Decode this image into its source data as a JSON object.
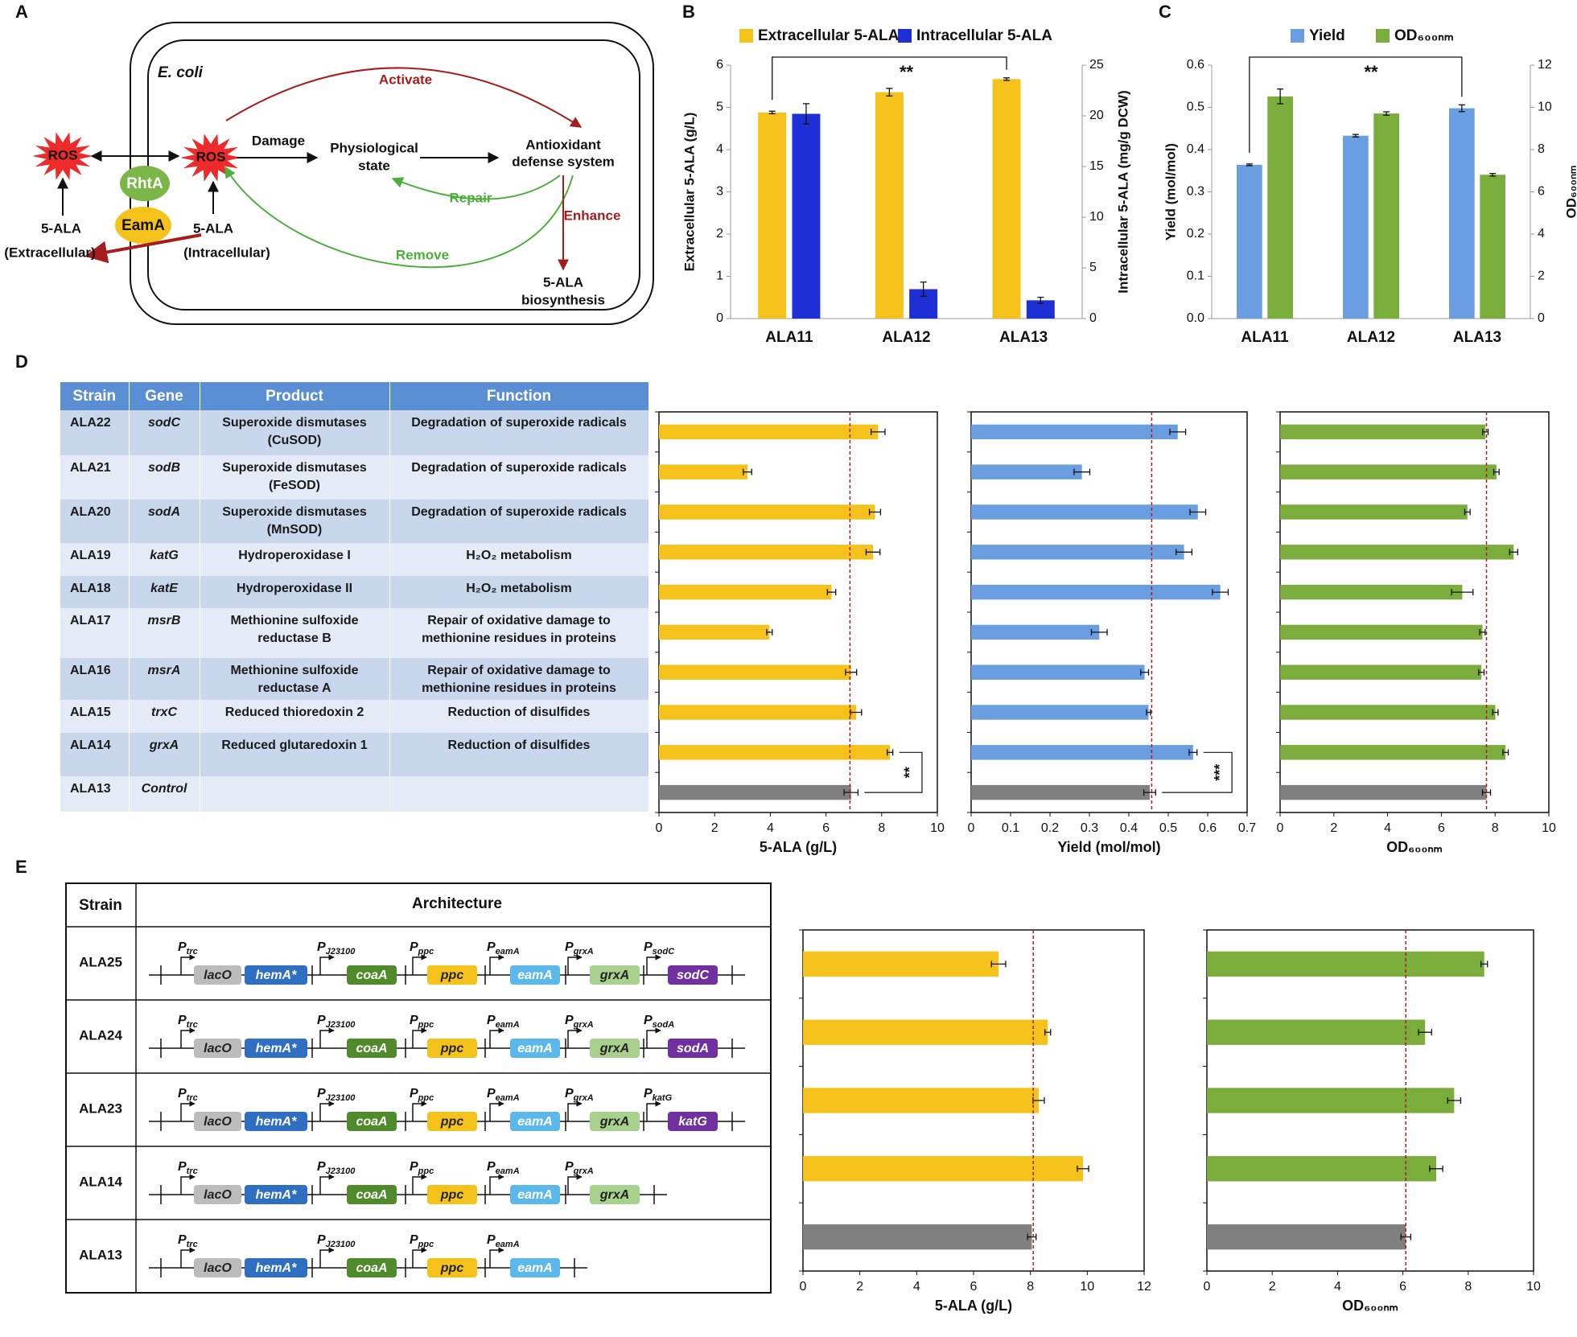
{
  "panel_labels": [
    "A",
    "B",
    "C",
    "D",
    "E"
  ],
  "diagram": {
    "organism": "E. coli",
    "ros": "ROS",
    "activate": "Activate",
    "damage": "Damage",
    "physiological_state": [
      "Physiological",
      "state"
    ],
    "antioxidant_system": [
      "Antioxidant",
      "defense system"
    ],
    "repair": "Repair",
    "remove": "Remove",
    "enhance": "Enhance",
    "biosynthesis": [
      "5-ALA",
      "biosynthesis"
    ],
    "rhta": "RhtA",
    "eama": "EamA",
    "extracellular": [
      "5-ALA",
      "(Extracellular)"
    ],
    "intracellular": [
      "5-ALA",
      "(Intracellular)"
    ]
  },
  "chart_data": [
    {
      "type": "bar",
      "categories": [
        "ALA11",
        "ALA12",
        "ALA13"
      ],
      "series": [
        {
          "name": "Extracellular 5-ALA",
          "color": "#f5c21b",
          "values": [
            4.88,
            5.36,
            5.67
          ],
          "errors": [
            0.03,
            0.09,
            0.03
          ]
        },
        {
          "name": "Intracellular 5-ALA",
          "color": "#1f2fd6",
          "axis": "y2",
          "values": [
            20.2,
            2.9,
            1.8
          ],
          "errors": [
            1.0,
            0.7,
            0.3
          ]
        }
      ],
      "ylabel": "Extracellular 5-ALA (g/L)",
      "y2label": "Intracellular 5-ALA (mg/g DCW)",
      "ylim": [
        0,
        6
      ],
      "yticks": [
        0,
        1,
        2,
        3,
        4,
        5,
        6
      ],
      "y2lim": [
        0,
        25
      ],
      "y2ticks": [
        0,
        5,
        10,
        15,
        20,
        25
      ],
      "annotation": "**"
    },
    {
      "type": "bar",
      "categories": [
        "ALA11",
        "ALA12",
        "ALA13"
      ],
      "series": [
        {
          "name": "Yield",
          "color": "#6a9ee0",
          "values": [
            0.364,
            0.433,
            0.498
          ],
          "errors": [
            0.002,
            0.003,
            0.008
          ]
        },
        {
          "name": "OD₆₀₀ₙₘ",
          "color": "#7aad3c",
          "axis": "y2",
          "values": [
            10.52,
            9.71,
            6.81
          ],
          "errors": [
            0.35,
            0.08,
            0.06
          ]
        }
      ],
      "ylabel": "Yield (mol/mol)",
      "y2label": "OD₆₀₀ₙₘ",
      "ylim": [
        0,
        0.6
      ],
      "yticks": [
        {
          "value": 0,
          "label": "0.0"
        },
        0.1,
        0.2,
        0.3,
        0.4,
        0.5,
        0.6
      ],
      "y2lim": [
        0,
        12
      ],
      "y2ticks": [
        0,
        2,
        4,
        6,
        8,
        10,
        12
      ],
      "annotation": "**"
    },
    {
      "type": "barh",
      "values": [
        7.87,
        3.18,
        7.76,
        7.69,
        6.2,
        3.97,
        6.9,
        7.08,
        8.3,
        6.9
      ],
      "errors": [
        0.25,
        0.15,
        0.2,
        0.25,
        0.15,
        0.1,
        0.2,
        0.2,
        0.1,
        0.25
      ],
      "colors": [
        "#f5c21b",
        "#f5c21b",
        "#f5c21b",
        "#f5c21b",
        "#f5c21b",
        "#f5c21b",
        "#f5c21b",
        "#f5c21b",
        "#f5c21b",
        "#808080"
      ],
      "reference_line": 6.86,
      "reference_color": "#b01c1c",
      "xlabel": "5-ALA (g/L)",
      "xlim": [
        0,
        10
      ],
      "xticks": [
        0,
        2,
        4,
        6,
        8,
        10
      ],
      "annotation": "**"
    },
    {
      "type": "barh",
      "values": [
        0.524,
        0.281,
        0.575,
        0.54,
        0.632,
        0.325,
        0.44,
        0.45,
        0.563,
        0.453
      ],
      "errors": [
        0.02,
        0.02,
        0.02,
        0.02,
        0.02,
        0.02,
        0.01,
        0.005,
        0.01,
        0.015
      ],
      "colors": [
        "#6a9ee0",
        "#6a9ee0",
        "#6a9ee0",
        "#6a9ee0",
        "#6a9ee0",
        "#6a9ee0",
        "#6a9ee0",
        "#6a9ee0",
        "#6a9ee0",
        "#808080"
      ],
      "reference_line": 0.458,
      "reference_color": "#b01c1c",
      "xlabel": "Yield (mol/mol)",
      "xlim": [
        0,
        0.7
      ],
      "xticks": [
        0,
        0.1,
        0.2,
        0.3,
        0.4,
        0.5,
        0.6,
        0.7
      ],
      "annotation": "***"
    },
    {
      "type": "barh",
      "values": [
        7.64,
        8.05,
        6.97,
        8.69,
        6.78,
        7.53,
        7.49,
        8.01,
        8.39,
        7.68
      ],
      "errors": [
        0.1,
        0.1,
        0.1,
        0.15,
        0.4,
        0.1,
        0.1,
        0.1,
        0.1,
        0.15
      ],
      "colors": [
        "#7aad3c",
        "#7aad3c",
        "#7aad3c",
        "#7aad3c",
        "#7aad3c",
        "#7aad3c",
        "#7aad3c",
        "#7aad3c",
        "#7aad3c",
        "#808080"
      ],
      "reference_line": 7.68,
      "reference_color": "#b01c1c",
      "xlabel": "OD₆₀₀ₙₘ",
      "xlim": [
        0,
        10
      ],
      "xticks": [
        0,
        2,
        4,
        6,
        8,
        10
      ]
    },
    {
      "type": "barh",
      "values": [
        6.88,
        8.61,
        8.29,
        9.85,
        8.05
      ],
      "errors": [
        0.25,
        0.1,
        0.2,
        0.2,
        0.15
      ],
      "colors": [
        "#f5c21b",
        "#f5c21b",
        "#f5c21b",
        "#f5c21b",
        "#808080"
      ],
      "reference_line": 8.1,
      "reference_color": "#b01c1c",
      "xlabel": "5-ALA (g/L)",
      "xlim": [
        0,
        12
      ],
      "xticks": [
        0,
        2,
        4,
        6,
        8,
        10,
        12
      ]
    },
    {
      "type": "barh",
      "values": [
        8.49,
        6.68,
        7.57,
        7.02,
        6.09
      ],
      "errors": [
        0.1,
        0.2,
        0.2,
        0.2,
        0.15
      ],
      "colors": [
        "#7aad3c",
        "#7aad3c",
        "#7aad3c",
        "#7aad3c",
        "#808080"
      ],
      "reference_line": 6.09,
      "reference_color": "#b01c1c",
      "xlabel": "OD₆₀₀ₙₘ",
      "xlim": [
        0,
        10
      ],
      "xticks": [
        0,
        2,
        4,
        6,
        8,
        10
      ]
    }
  ],
  "table_d": {
    "columns": [
      "Strain",
      "Gene",
      "Product",
      "Function"
    ],
    "rows": [
      [
        "ALA22",
        "sodC",
        "Superoxide dismutases (CuSOD)",
        "Degradation of superoxide radicals"
      ],
      [
        "ALA21",
        "sodB",
        "Superoxide dismutases (FeSOD)",
        "Degradation of superoxide radicals"
      ],
      [
        "ALA20",
        "sodA",
        "Superoxide dismutases (MnSOD)",
        "Degradation of superoxide radicals"
      ],
      [
        "ALA19",
        "katG",
        "Hydroperoxidase I",
        "H₂O₂ metabolism"
      ],
      [
        "ALA18",
        "katE",
        "Hydroperoxidase II",
        "H₂O₂ metabolism"
      ],
      [
        "ALA17",
        "msrB",
        "Methionine sulfoxide reductase B",
        "Repair of oxidative damage to methionine residues in proteins"
      ],
      [
        "ALA16",
        "msrA",
        "Methionine sulfoxide reductase A",
        "Repair of oxidative damage to methionine residues in proteins"
      ],
      [
        "ALA15",
        "trxC",
        "Reduced thioredoxin 2",
        "Reduction of disulfides"
      ],
      [
        "ALA14",
        "grxA",
        "Reduced glutaredoxin 1",
        "Reduction of disulfides"
      ],
      [
        "ALA13",
        "Control"
      ]
    ]
  },
  "architecture": {
    "columns": [
      "Strain",
      "Architecture"
    ],
    "promoter_symbol": "P",
    "gene_styles": {
      "lacO": {
        "fill": "#bcbcbc",
        "text": "#222222"
      },
      "hemA*": {
        "fill": "#2f6fc2",
        "text": "#ffffff"
      },
      "coaA": {
        "fill": "#4f8a2b",
        "text": "#ffffff"
      },
      "ppc": {
        "fill": "#f5c21b",
        "text": "#222222"
      },
      "eamA": {
        "fill": "#5bb8ea",
        "text": "#ffffff"
      },
      "grxA": {
        "fill": "#a9d18e",
        "text": "#222222"
      },
      "sodC": {
        "fill": "#7030a0",
        "text": "#ffffff"
      },
      "sodA": {
        "fill": "#7030a0",
        "text": "#ffffff"
      },
      "katG": {
        "fill": "#7030a0",
        "text": "#ffffff"
      }
    },
    "rows": [
      {
        "strain": "ALA25",
        "units": [
          {
            "promoter": "trc",
            "genes": [
              "lacO",
              "hemA*"
            ]
          },
          {
            "promoter": "J23100",
            "genes": [
              "coaA"
            ]
          },
          {
            "promoter": "ppc",
            "genes": [
              "ppc"
            ]
          },
          {
            "promoter": "eamA",
            "genes": [
              "eamA"
            ]
          },
          {
            "promoter": "grxA",
            "genes": [
              "grxA"
            ]
          },
          {
            "promoter": "sodC",
            "genes": [
              "sodC"
            ]
          }
        ]
      },
      {
        "strain": "ALA24",
        "units": [
          {
            "promoter": "trc",
            "genes": [
              "lacO",
              "hemA*"
            ]
          },
          {
            "promoter": "J23100",
            "genes": [
              "coaA"
            ]
          },
          {
            "promoter": "ppc",
            "genes": [
              "ppc"
            ]
          },
          {
            "promoter": "eamA",
            "genes": [
              "eamA"
            ]
          },
          {
            "promoter": "grxA",
            "genes": [
              "grxA"
            ]
          },
          {
            "promoter": "sodA",
            "genes": [
              "sodA"
            ]
          }
        ]
      },
      {
        "strain": "ALA23",
        "units": [
          {
            "promoter": "trc",
            "genes": [
              "lacO",
              "hemA*"
            ]
          },
          {
            "promoter": "J23100",
            "genes": [
              "coaA"
            ]
          },
          {
            "promoter": "ppc",
            "genes": [
              "ppc"
            ]
          },
          {
            "promoter": "eamA",
            "genes": [
              "eamA"
            ]
          },
          {
            "promoter": "grxA",
            "genes": [
              "grxA"
            ]
          },
          {
            "promoter": "katG",
            "genes": [
              "katG"
            ]
          }
        ]
      },
      {
        "strain": "ALA14",
        "units": [
          {
            "promoter": "trc",
            "genes": [
              "lacO",
              "hemA*"
            ]
          },
          {
            "promoter": "J23100",
            "genes": [
              "coaA"
            ]
          },
          {
            "promoter": "ppc",
            "genes": [
              "ppc"
            ]
          },
          {
            "promoter": "eamA",
            "genes": [
              "eamA"
            ]
          },
          {
            "promoter": "grxA",
            "genes": [
              "grxA"
            ]
          }
        ]
      },
      {
        "strain": "ALA13",
        "units": [
          {
            "promoter": "trc",
            "genes": [
              "lacO",
              "hemA*"
            ]
          },
          {
            "promoter": "J23100",
            "genes": [
              "coaA"
            ]
          },
          {
            "promoter": "ppc",
            "genes": [
              "ppc"
            ]
          },
          {
            "promoter": "eamA",
            "genes": [
              "eamA"
            ]
          }
        ]
      }
    ]
  }
}
